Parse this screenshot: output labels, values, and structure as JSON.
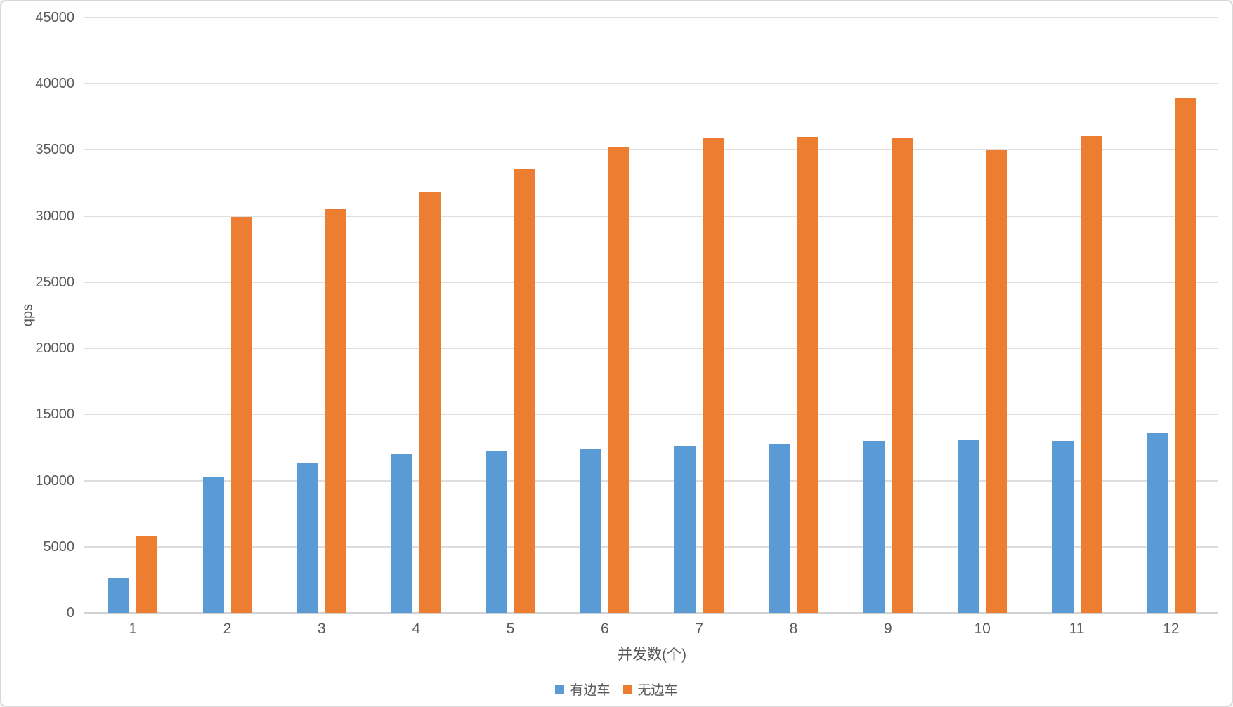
{
  "chart_data": {
    "type": "bar",
    "title": "",
    "xlabel": "并发数(个)",
    "ylabel": "qps",
    "categories": [
      "1",
      "2",
      "3",
      "4",
      "5",
      "6",
      "7",
      "8",
      "9",
      "10",
      "11",
      "12"
    ],
    "series": [
      {
        "name": "有边车",
        "color": "#5B9BD5",
        "values": [
          2650,
          10250,
          11350,
          12000,
          12250,
          12350,
          12650,
          12750,
          13000,
          13050,
          13000,
          13600
        ]
      },
      {
        "name": "无边车",
        "color": "#ED7D31",
        "values": [
          5800,
          29950,
          30550,
          31800,
          33550,
          35200,
          35900,
          36000,
          35850,
          35000,
          36100,
          38950
        ]
      }
    ],
    "ylim": [
      0,
      45000
    ],
    "ytick_interval": 5000,
    "yticks": [
      0,
      5000,
      10000,
      15000,
      20000,
      25000,
      30000,
      35000,
      40000,
      45000
    ],
    "grid": "horizontal",
    "legend_position": "bottom"
  },
  "colors": {
    "gridline": "#DEDEDE",
    "axis_line": "#D2D2D2",
    "text": "#595959",
    "card_border": "#D9D9D9",
    "background": "#FFFFFF"
  }
}
